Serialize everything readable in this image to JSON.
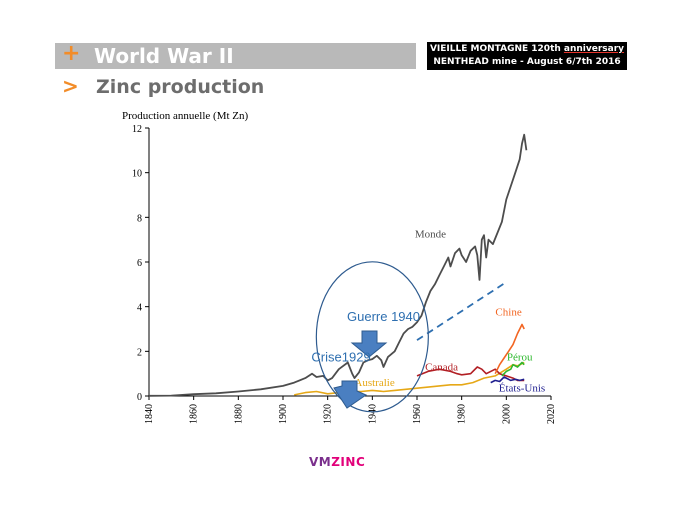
{
  "header": {
    "title": "World War II",
    "plus_icon": "+",
    "subtitle": "Zinc production",
    "arrow_icon": ">",
    "badge_line1_prefix": "VIEILLE MONTAGNE 120th ",
    "badge_line1_underlined": "anniversary",
    "badge_line2": "NENTHEAD mine - August 6/7th 2016"
  },
  "footer": {
    "logo_a": "VM",
    "logo_b": "ZINC"
  },
  "colors": {
    "accent": "#f28c28",
    "monde": "#4d4d4d",
    "chine": "#f26522",
    "perou": "#2eb82e",
    "canada": "#b21f24",
    "australie": "#e6a817",
    "etats_unis": "#1f1f8f",
    "annotation": "#2e6fb0"
  },
  "chart_data": {
    "type": "line",
    "ylabel": "Production annuelle (Mt Zn)",
    "xlim": [
      1840,
      2020
    ],
    "ylim": [
      0,
      12
    ],
    "x_ticks": [
      "1840",
      "1860",
      "1880",
      "1900",
      "1920",
      "1940",
      "1960",
      "1980",
      "2000",
      "2020"
    ],
    "y_ticks": [
      "0",
      "2",
      "4",
      "6",
      "8",
      "10",
      "12"
    ],
    "series": [
      {
        "name": "Monde",
        "color": "#4d4d4d",
        "points": [
          [
            1840,
            0.01
          ],
          [
            1850,
            0.02
          ],
          [
            1860,
            0.08
          ],
          [
            1870,
            0.12
          ],
          [
            1880,
            0.2
          ],
          [
            1890,
            0.3
          ],
          [
            1900,
            0.45
          ],
          [
            1905,
            0.6
          ],
          [
            1910,
            0.8
          ],
          [
            1913,
            1.0
          ],
          [
            1915,
            0.85
          ],
          [
            1918,
            0.9
          ],
          [
            1920,
            0.7
          ],
          [
            1922,
            0.8
          ],
          [
            1925,
            1.2
          ],
          [
            1929,
            1.5
          ],
          [
            1931,
            1.0
          ],
          [
            1932,
            0.8
          ],
          [
            1934,
            1.05
          ],
          [
            1936,
            1.5
          ],
          [
            1938,
            1.6
          ],
          [
            1940,
            1.65
          ],
          [
            1942,
            1.8
          ],
          [
            1944,
            1.6
          ],
          [
            1945,
            1.3
          ],
          [
            1947,
            1.75
          ],
          [
            1950,
            2.0
          ],
          [
            1952,
            2.4
          ],
          [
            1954,
            2.8
          ],
          [
            1956,
            3.0
          ],
          [
            1958,
            3.1
          ],
          [
            1960,
            3.3
          ],
          [
            1962,
            3.6
          ],
          [
            1964,
            4.2
          ],
          [
            1966,
            4.7
          ],
          [
            1968,
            5.0
          ],
          [
            1970,
            5.4
          ],
          [
            1972,
            5.8
          ],
          [
            1974,
            6.2
          ],
          [
            1975,
            5.8
          ],
          [
            1977,
            6.4
          ],
          [
            1979,
            6.6
          ],
          [
            1980,
            6.3
          ],
          [
            1982,
            6.0
          ],
          [
            1984,
            6.5
          ],
          [
            1986,
            6.7
          ],
          [
            1987,
            6.3
          ],
          [
            1988,
            5.2
          ],
          [
            1989,
            7.0
          ],
          [
            1990,
            7.2
          ],
          [
            1991,
            6.2
          ],
          [
            1992,
            7.0
          ],
          [
            1994,
            6.8
          ],
          [
            1996,
            7.3
          ],
          [
            1998,
            7.8
          ],
          [
            2000,
            8.8
          ],
          [
            2002,
            9.4
          ],
          [
            2004,
            10.0
          ],
          [
            2006,
            10.6
          ],
          [
            2007,
            11.3
          ],
          [
            2008,
            11.7
          ],
          [
            2009,
            11.0
          ]
        ]
      },
      {
        "name": "Chine",
        "color": "#f26522",
        "points": [
          [
            1995,
            1.0
          ],
          [
            1997,
            1.4
          ],
          [
            1999,
            1.7
          ],
          [
            2001,
            2.0
          ],
          [
            2003,
            2.3
          ],
          [
            2005,
            2.8
          ],
          [
            2007,
            3.2
          ],
          [
            2008,
            3.0
          ]
        ]
      },
      {
        "name": "Pérou",
        "color": "#2eb82e",
        "points": [
          [
            1998,
            0.9
          ],
          [
            2000,
            1.1
          ],
          [
            2002,
            1.2
          ],
          [
            2003,
            1.4
          ],
          [
            2005,
            1.3
          ],
          [
            2007,
            1.5
          ],
          [
            2008,
            1.4
          ]
        ]
      },
      {
        "name": "Canada",
        "color": "#b21f24",
        "points": [
          [
            1960,
            0.9
          ],
          [
            1965,
            1.1
          ],
          [
            1970,
            1.2
          ],
          [
            1975,
            1.1
          ],
          [
            1978,
            1.0
          ],
          [
            1980,
            0.95
          ],
          [
            1984,
            1.0
          ],
          [
            1987,
            1.3
          ],
          [
            1989,
            1.2
          ],
          [
            1991,
            1.0
          ],
          [
            1993,
            1.1
          ],
          [
            1995,
            1.2
          ],
          [
            1997,
            1.0
          ],
          [
            2000,
            0.9
          ],
          [
            2003,
            0.8
          ],
          [
            2005,
            0.7
          ],
          [
            2008,
            0.7
          ]
        ]
      },
      {
        "name": "Australie",
        "color": "#e6a817",
        "points": [
          [
            1905,
            0.05
          ],
          [
            1910,
            0.15
          ],
          [
            1915,
            0.2
          ],
          [
            1920,
            0.1
          ],
          [
            1925,
            0.15
          ],
          [
            1930,
            0.2
          ],
          [
            1935,
            0.2
          ],
          [
            1940,
            0.25
          ],
          [
            1945,
            0.2
          ],
          [
            1950,
            0.25
          ],
          [
            1955,
            0.3
          ],
          [
            1960,
            0.35
          ],
          [
            1965,
            0.4
          ],
          [
            1970,
            0.45
          ],
          [
            1975,
            0.5
          ],
          [
            1980,
            0.5
          ],
          [
            1985,
            0.6
          ],
          [
            1990,
            0.8
          ],
          [
            1995,
            0.9
          ],
          [
            2000,
            1.2
          ],
          [
            2003,
            1.4
          ],
          [
            2005,
            1.35
          ],
          [
            2008,
            1.5
          ]
        ]
      },
      {
        "name": "États-Unis",
        "color": "#1f1f8f",
        "points": [
          [
            1993,
            0.6
          ],
          [
            1995,
            0.7
          ],
          [
            1997,
            0.65
          ],
          [
            1999,
            0.85
          ],
          [
            2000,
            0.8
          ],
          [
            2002,
            0.7
          ],
          [
            2004,
            0.75
          ],
          [
            2006,
            0.7
          ],
          [
            2008,
            0.75
          ]
        ]
      }
    ],
    "trend_line": {
      "color": "#2e6fb0",
      "points": [
        [
          1960,
          2.5
        ],
        [
          2000,
          5.1
        ]
      ]
    },
    "series_labels": [
      {
        "text": "Monde",
        "x": 1966,
        "y": 7.1,
        "color": "#4d4d4d"
      },
      {
        "text": "Chine",
        "x": 2001,
        "y": 3.6,
        "color": "#f26522"
      },
      {
        "text": "Pérou",
        "x": 2006,
        "y": 1.6,
        "color": "#2eb82e"
      },
      {
        "text": "Canada",
        "x": 1971,
        "y": 1.15,
        "color": "#b21f24"
      },
      {
        "text": "Australie",
        "x": 1941,
        "y": 0.45,
        "color": "#e6a817"
      },
      {
        "text": "États-Unis",
        "x": 2007,
        "y": 0.2,
        "color": "#1f1f8f"
      }
    ],
    "annotations": [
      {
        "text": "Guerre 1940",
        "x": 1945,
        "y": 3.35
      },
      {
        "text": "Crise1929",
        "x": 1926,
        "y": 1.55
      }
    ]
  }
}
